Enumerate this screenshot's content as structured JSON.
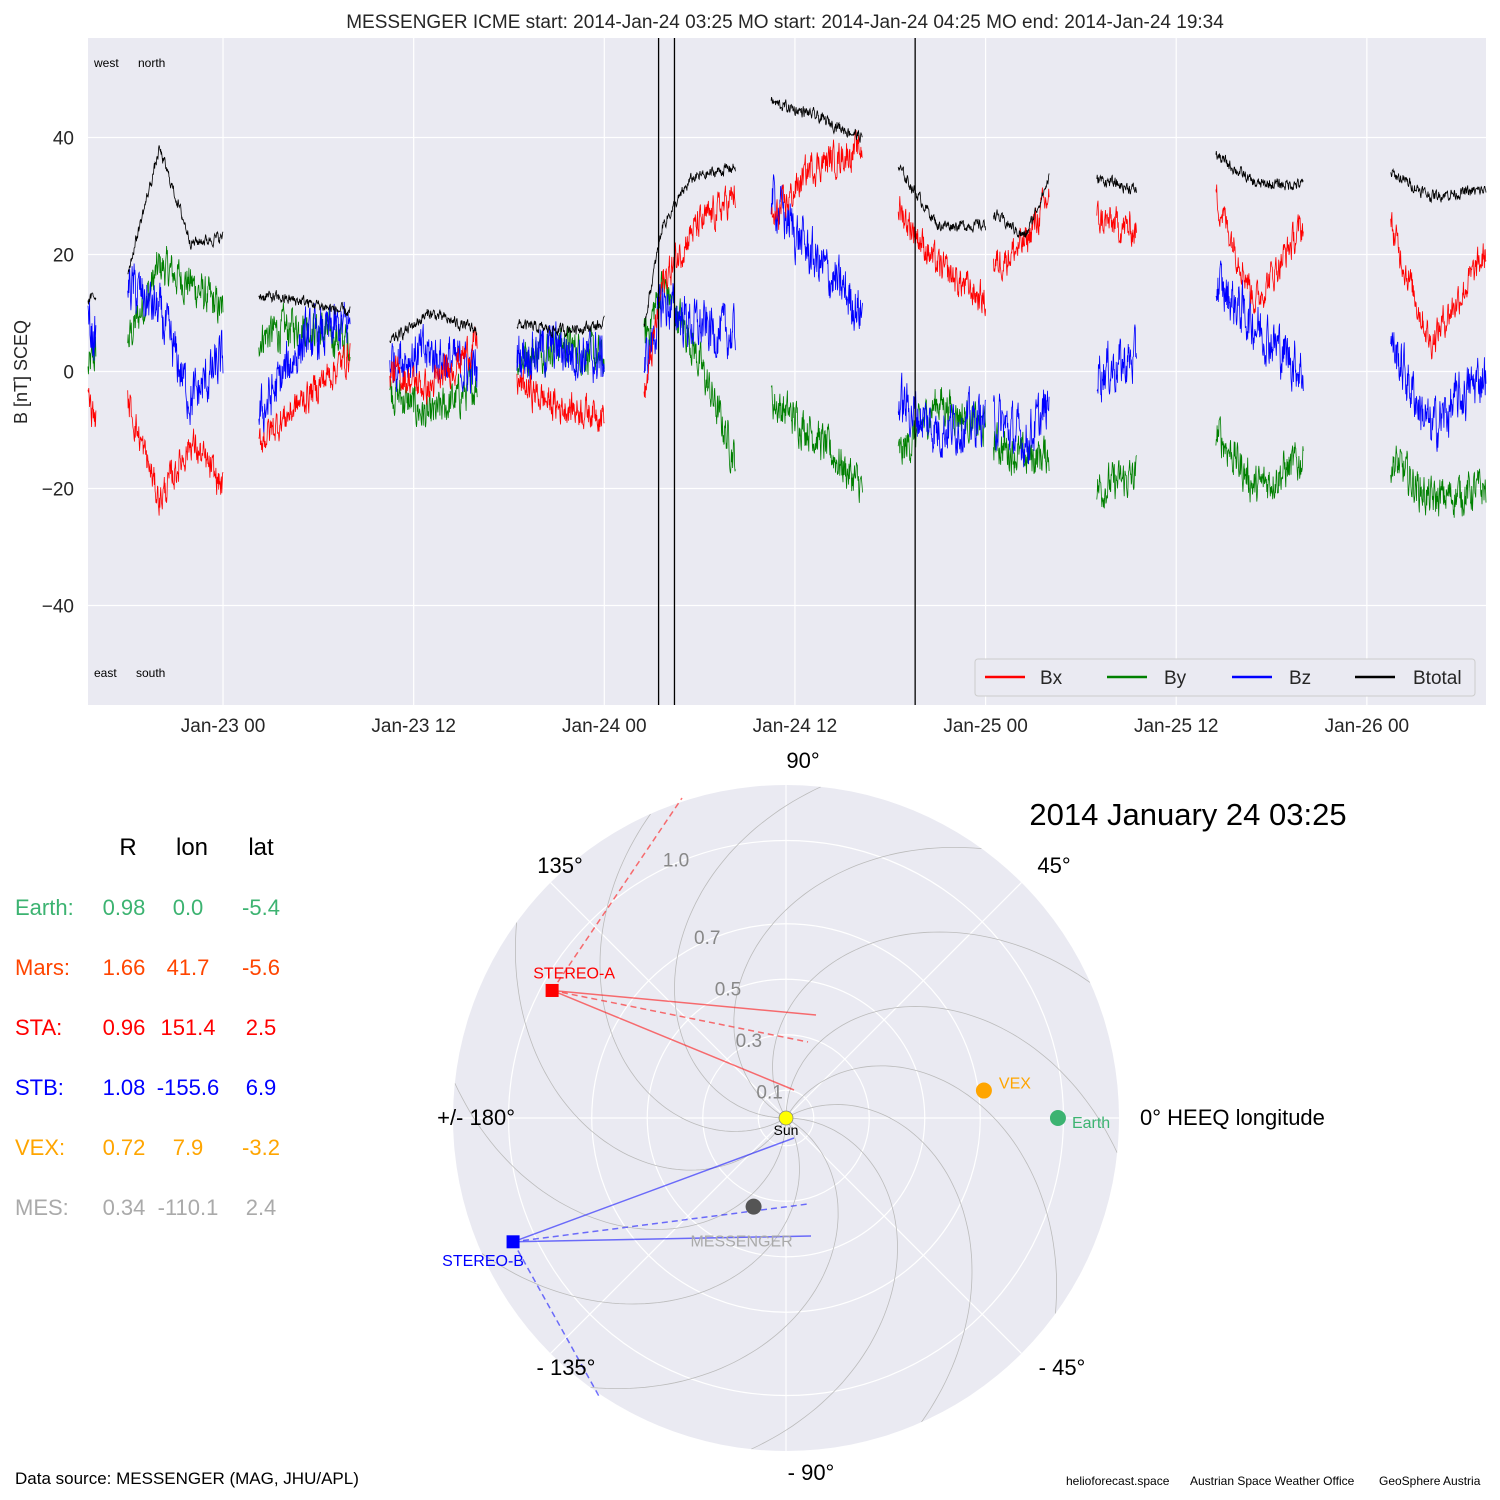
{
  "chart_data": [
    {
      "type": "line",
      "title": "MESSENGER    ICME start: 2014-Jan-24 03:25   MO start: 2014-Jan-24 04:25   MO end: 2014-Jan-24 19:34",
      "ylabel": "B [nT] SCEQ",
      "xlabel": "",
      "x_range": [
        "2014-01-22 15:30",
        "2014-01-26 07:30"
      ],
      "ylim": [
        -57,
        57
      ],
      "yticks": [
        -40,
        -20,
        0,
        20,
        40
      ],
      "ytick_labels": [
        "−40",
        "−20",
        "0",
        "20",
        "40"
      ],
      "xticks": [
        "2014-01-23 00:00",
        "2014-01-23 12:00",
        "2014-01-24 00:00",
        "2014-01-24 12:00",
        "2014-01-25 00:00",
        "2014-01-25 12:00",
        "2014-01-26 00:00"
      ],
      "xtick_labels": [
        "Jan-23 00",
        "Jan-23 12",
        "Jan-24 00",
        "Jan-24 12",
        "Jan-25 00",
        "Jan-25 12",
        "Jan-26 00"
      ],
      "grid": true,
      "legend_placement": "lower-right",
      "corner_labels": {
        "top_left_a": "west",
        "top_left_b": "north",
        "bottom_left_a": "east",
        "bottom_left_b": "south"
      },
      "event_markers": [
        {
          "time": "2014-01-24 03:25"
        },
        {
          "time": "2014-01-24 04:25"
        },
        {
          "time": "2014-01-24 19:34"
        }
      ],
      "data_windows": [
        [
          "2014-01-22 15:30",
          "2014-01-22 16:00"
        ],
        [
          "2014-01-22 18:00",
          "2014-01-23 00:00"
        ],
        [
          "2014-01-23 02:15",
          "2014-01-23 08:00"
        ],
        [
          "2014-01-23 10:30",
          "2014-01-23 16:00"
        ],
        [
          "2014-01-23 18:30",
          "2014-01-24 00:00"
        ],
        [
          "2014-01-24 02:30",
          "2014-01-24 08:15"
        ],
        [
          "2014-01-24 10:30",
          "2014-01-24 16:15"
        ],
        [
          "2014-01-24 18:30",
          "2014-01-25 00:00"
        ],
        [
          "2014-01-25 00:30",
          "2014-01-25 04:00"
        ],
        [
          "2014-01-25 07:00",
          "2014-01-25 09:30"
        ],
        [
          "2014-01-25 14:30",
          "2014-01-25 20:00"
        ],
        [
          "2014-01-26 01:30",
          "2014-01-26 07:30"
        ]
      ],
      "series": [
        {
          "name": "Bx",
          "color": "#ff0000",
          "anchors": [
            [
              "2014-01-22 15:30",
              -5
            ],
            [
              "2014-01-22 16:00",
              -8
            ],
            [
              "2014-01-22 18:00",
              -5
            ],
            [
              "2014-01-22 20:00",
              -22
            ],
            [
              "2014-01-22 22:00",
              -12
            ],
            [
              "2014-01-23 00:00",
              -20
            ],
            [
              "2014-01-23 02:15",
              -12
            ],
            [
              "2014-01-23 05:00",
              -5
            ],
            [
              "2014-01-23 08:00",
              3
            ],
            [
              "2014-01-23 10:30",
              0
            ],
            [
              "2014-01-23 13:00",
              -3
            ],
            [
              "2014-01-23 16:00",
              5
            ],
            [
              "2014-01-23 18:30",
              -2
            ],
            [
              "2014-01-23 21:00",
              -6
            ],
            [
              "2014-01-24 00:00",
              -7
            ],
            [
              "2014-01-24 02:30",
              -5
            ],
            [
              "2014-01-24 03:40",
              15
            ],
            [
              "2014-01-24 05:30",
              24
            ],
            [
              "2014-01-24 08:15",
              30
            ],
            [
              "2014-01-24 10:30",
              25
            ],
            [
              "2014-01-24 13:00",
              35
            ],
            [
              "2014-01-24 16:15",
              38
            ],
            [
              "2014-01-24 18:30",
              28
            ],
            [
              "2014-01-24 21:00",
              18
            ],
            [
              "2014-01-25 00:00",
              12
            ],
            [
              "2014-01-25 00:30",
              18
            ],
            [
              "2014-01-25 02:30",
              22
            ],
            [
              "2014-01-25 04:00",
              30
            ],
            [
              "2014-01-25 07:00",
              26
            ],
            [
              "2014-01-25 09:30",
              24
            ],
            [
              "2014-01-25 14:30",
              30
            ],
            [
              "2014-01-25 17:00",
              12
            ],
            [
              "2014-01-25 20:00",
              25
            ],
            [
              "2014-01-26 01:30",
              25
            ],
            [
              "2014-01-26 04:00",
              5
            ],
            [
              "2014-01-26 07:30",
              20
            ]
          ]
        },
        {
          "name": "By",
          "color": "#008000",
          "anchors": [
            [
              "2014-01-22 15:30",
              0
            ],
            [
              "2014-01-22 16:00",
              3
            ],
            [
              "2014-01-22 18:00",
              5
            ],
            [
              "2014-01-22 20:00",
              18
            ],
            [
              "2014-01-22 22:00",
              15
            ],
            [
              "2014-01-23 00:00",
              10
            ],
            [
              "2014-01-23 02:15",
              6
            ],
            [
              "2014-01-23 05:00",
              8
            ],
            [
              "2014-01-23 08:00",
              5
            ],
            [
              "2014-01-23 10:30",
              -3
            ],
            [
              "2014-01-23 13:00",
              -8
            ],
            [
              "2014-01-23 16:00",
              -2
            ],
            [
              "2014-01-23 18:30",
              2
            ],
            [
              "2014-01-23 21:00",
              5
            ],
            [
              "2014-01-24 00:00",
              2
            ],
            [
              "2014-01-24 02:30",
              5
            ],
            [
              "2014-01-24 03:40",
              15
            ],
            [
              "2014-01-24 05:30",
              5
            ],
            [
              "2014-01-24 08:15",
              -15
            ],
            [
              "2014-01-24 10:30",
              -5
            ],
            [
              "2014-01-24 13:00",
              -10
            ],
            [
              "2014-01-24 16:15",
              -20
            ],
            [
              "2014-01-24 18:30",
              -15
            ],
            [
              "2014-01-24 21:00",
              -5
            ],
            [
              "2014-01-25 00:00",
              -10
            ],
            [
              "2014-01-25 00:30",
              -12
            ],
            [
              "2014-01-25 02:30",
              -15
            ],
            [
              "2014-01-25 04:00",
              -14
            ],
            [
              "2014-01-25 07:00",
              -20
            ],
            [
              "2014-01-25 09:30",
              -18
            ],
            [
              "2014-01-25 14:30",
              -10
            ],
            [
              "2014-01-25 17:00",
              -20
            ],
            [
              "2014-01-25 20:00",
              -15
            ],
            [
              "2014-01-26 01:30",
              -15
            ],
            [
              "2014-01-26 04:00",
              -22
            ],
            [
              "2014-01-26 07:30",
              -20
            ]
          ]
        },
        {
          "name": "Bz",
          "color": "#0000ff",
          "anchors": [
            [
              "2014-01-22 15:30",
              8
            ],
            [
              "2014-01-22 16:00",
              5
            ],
            [
              "2014-01-22 18:00",
              15
            ],
            [
              "2014-01-22 20:00",
              10
            ],
            [
              "2014-01-22 22:00",
              -5
            ],
            [
              "2014-01-23 00:00",
              2
            ],
            [
              "2014-01-23 02:15",
              -8
            ],
            [
              "2014-01-23 05:00",
              5
            ],
            [
              "2014-01-23 08:00",
              8
            ],
            [
              "2014-01-23 10:30",
              2
            ],
            [
              "2014-01-23 13:00",
              3
            ],
            [
              "2014-01-23 16:00",
              0
            ],
            [
              "2014-01-23 18:30",
              3
            ],
            [
              "2014-01-23 21:00",
              4
            ],
            [
              "2014-01-24 00:00",
              2
            ],
            [
              "2014-01-24 02:30",
              0
            ],
            [
              "2014-01-24 03:40",
              12
            ],
            [
              "2014-01-24 05:30",
              8
            ],
            [
              "2014-01-24 08:15",
              6
            ],
            [
              "2014-01-24 10:30",
              30
            ],
            [
              "2014-01-24 13:00",
              20
            ],
            [
              "2014-01-24 16:15",
              10
            ],
            [
              "2014-01-24 18:30",
              -5
            ],
            [
              "2014-01-24 21:00",
              -10
            ],
            [
              "2014-01-25 00:00",
              -8
            ],
            [
              "2014-01-25 00:30",
              -8
            ],
            [
              "2014-01-25 02:30",
              -12
            ],
            [
              "2014-01-25 04:00",
              -6
            ],
            [
              "2014-01-25 07:00",
              0
            ],
            [
              "2014-01-25 09:30",
              2
            ],
            [
              "2014-01-25 14:30",
              15
            ],
            [
              "2014-01-25 17:00",
              8
            ],
            [
              "2014-01-25 20:00",
              0
            ],
            [
              "2014-01-26 01:30",
              5
            ],
            [
              "2014-01-26 04:00",
              -10
            ],
            [
              "2014-01-26 07:30",
              0
            ]
          ]
        },
        {
          "name": "Btotal",
          "color": "#000000",
          "anchors": [
            [
              "2014-01-22 15:30",
              12
            ],
            [
              "2014-01-22 16:00",
              13
            ],
            [
              "2014-01-22 18:00",
              17
            ],
            [
              "2014-01-22 20:00",
              38
            ],
            [
              "2014-01-22 22:00",
              22
            ],
            [
              "2014-01-23 00:00",
              23
            ],
            [
              "2014-01-23 02:15",
              13
            ],
            [
              "2014-01-23 05:00",
              12
            ],
            [
              "2014-01-23 08:00",
              10
            ],
            [
              "2014-01-23 10:30",
              5
            ],
            [
              "2014-01-23 13:00",
              10
            ],
            [
              "2014-01-23 16:00",
              7
            ],
            [
              "2014-01-23 18:30",
              8
            ],
            [
              "2014-01-23 21:00",
              7
            ],
            [
              "2014-01-24 00:00",
              8
            ],
            [
              "2014-01-24 02:30",
              8
            ],
            [
              "2014-01-24 03:40",
              25
            ],
            [
              "2014-01-24 05:30",
              33
            ],
            [
              "2014-01-24 08:15",
              35
            ],
            [
              "2014-01-24 10:30",
              46
            ],
            [
              "2014-01-24 13:00",
              44
            ],
            [
              "2014-01-24 16:15",
              40
            ],
            [
              "2014-01-24 18:30",
              35
            ],
            [
              "2014-01-24 21:00",
              25
            ],
            [
              "2014-01-25 00:00",
              25
            ],
            [
              "2014-01-25 00:30",
              27
            ],
            [
              "2014-01-25 02:30",
              23
            ],
            [
              "2014-01-25 04:00",
              33
            ],
            [
              "2014-01-25 07:00",
              33
            ],
            [
              "2014-01-25 09:30",
              31
            ],
            [
              "2014-01-25 14:30",
              37
            ],
            [
              "2014-01-25 17:00",
              32
            ],
            [
              "2014-01-25 20:00",
              32
            ],
            [
              "2014-01-26 01:30",
              34
            ],
            [
              "2014-01-26 04:00",
              30
            ],
            [
              "2014-01-26 07:30",
              31
            ]
          ]
        }
      ]
    },
    {
      "type": "scatter",
      "subtype": "polar",
      "title": "2014 January 24  03:25",
      "rticks": [
        0.1,
        0.3,
        0.5,
        0.7,
        1.0
      ],
      "rtick_labels": [
        "0.1",
        "0.3",
        "0.5",
        "0.7",
        "1.0"
      ],
      "rmax": 1.2,
      "angle_labels": {
        "deg90": "90°",
        "deg45": "45°",
        "deg0": "0° HEEQ longitude",
        "degm45": "- 45°",
        "degm90": "- 90°",
        "degm135": "- 135°",
        "deg180": "+/- 180°",
        "deg135": "135°"
      },
      "bodies": [
        {
          "name": "Sun",
          "r": 0.0,
          "lon": 0.0,
          "color": "#ffff00",
          "marker": "circle"
        },
        {
          "name": "VEX",
          "r": 0.72,
          "lon": 7.9,
          "color": "#ffa500",
          "marker": "circle"
        },
        {
          "name": "Earth",
          "r": 0.98,
          "lon": 0.0,
          "color": "#3cb371",
          "marker": "circle"
        },
        {
          "name": "STEREO-A",
          "r": 0.96,
          "lon": 151.4,
          "color": "#ff0000",
          "marker": "square"
        },
        {
          "name": "STEREO-B",
          "r": 1.08,
          "lon": -155.6,
          "color": "#0000ff",
          "marker": "square"
        },
        {
          "name": "MESSENGER",
          "r": 0.34,
          "lon": -110.1,
          "color": "#555555",
          "label_color": "#aaaaaa",
          "marker": "circle"
        }
      ],
      "table": {
        "headers": [
          "R",
          "lon",
          "lat"
        ],
        "rows": [
          {
            "label": "Earth:",
            "r": "0.98",
            "lon": "0.0",
            "lat": "-5.4",
            "color": "#3cb371"
          },
          {
            "label": "Mars:",
            "r": "1.66",
            "lon": "41.7",
            "lat": "-5.6",
            "color": "#ff4500"
          },
          {
            "label": "STA:",
            "r": "0.96",
            "lon": "151.4",
            "lat": "2.5",
            "color": "#ff0000"
          },
          {
            "label": "STB:",
            "r": "1.08",
            "lon": "-155.6",
            "lat": "6.9",
            "color": "#0000ff"
          },
          {
            "label": "VEX:",
            "r": "0.72",
            "lon": "7.9",
            "lat": "-3.2",
            "color": "#ffa500"
          },
          {
            "label": "MES:",
            "r": "0.34",
            "lon": "-110.1",
            "lat": "2.4",
            "color": "#aaaaaa"
          }
        ]
      }
    }
  ],
  "footer": {
    "data_source": "Data source: MESSENGER (MAG, JHU/APL)",
    "credit_1": "helioforecast.space",
    "credit_2": "Austrian Space Weather Office",
    "credit_3": "GeoSphere Austria"
  }
}
